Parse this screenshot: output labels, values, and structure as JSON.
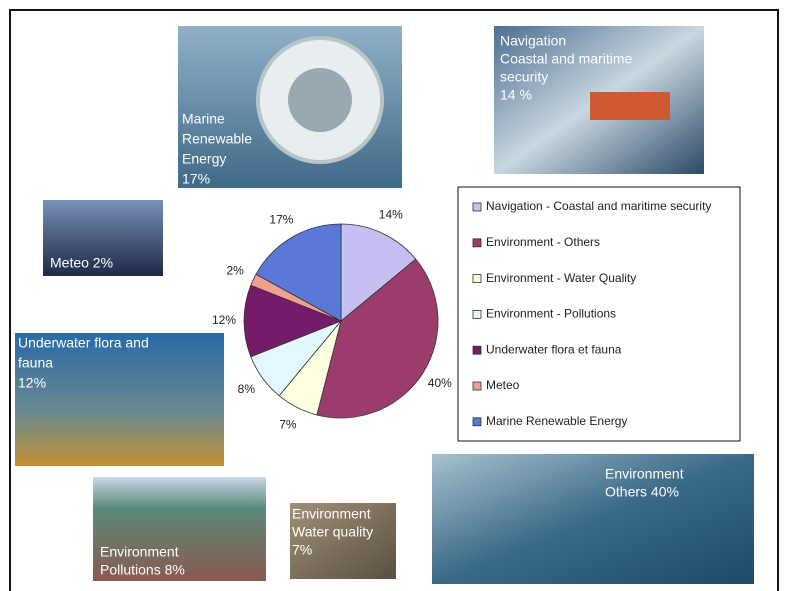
{
  "chart_data": {
    "type": "pie",
    "categories": [
      "Navigation - Coastal and maritime security",
      "Environment - Others",
      "Environment - Water Quality",
      "Environment - Pollutions",
      "Underwater flora et fauna",
      "Meteo",
      "Marine Renewable Energy"
    ],
    "values": [
      14,
      40,
      7,
      8,
      12,
      2,
      17
    ],
    "value_labels": [
      "14%",
      "40%",
      "7%",
      "8%",
      "12%",
      "2%",
      "17%"
    ],
    "colors": [
      "#c6c0f2",
      "#9c3c6c",
      "#fefee0",
      "#e2f8fe",
      "#761a6a",
      "#f0a090",
      "#5a78d8"
    ],
    "legend": "right"
  },
  "annotations": [
    {
      "lines": [
        "Marine",
        "Renewable",
        "Energy",
        "17%"
      ]
    },
    {
      "lines": [
        "Navigation",
        "Coastal and maritime",
        "security",
        "14 %"
      ]
    },
    {
      "lines": [
        "Meteo 2%"
      ]
    },
    {
      "lines": [
        "Underwater flora and",
        "fauna",
        "12%"
      ]
    },
    {
      "lines": [
        "Environment",
        "Pollutions 8%"
      ]
    },
    {
      "lines": [
        "Environment",
        "Water quality",
        "7%"
      ]
    },
    {
      "lines": [
        "Environment",
        "Others 40%"
      ]
    }
  ]
}
